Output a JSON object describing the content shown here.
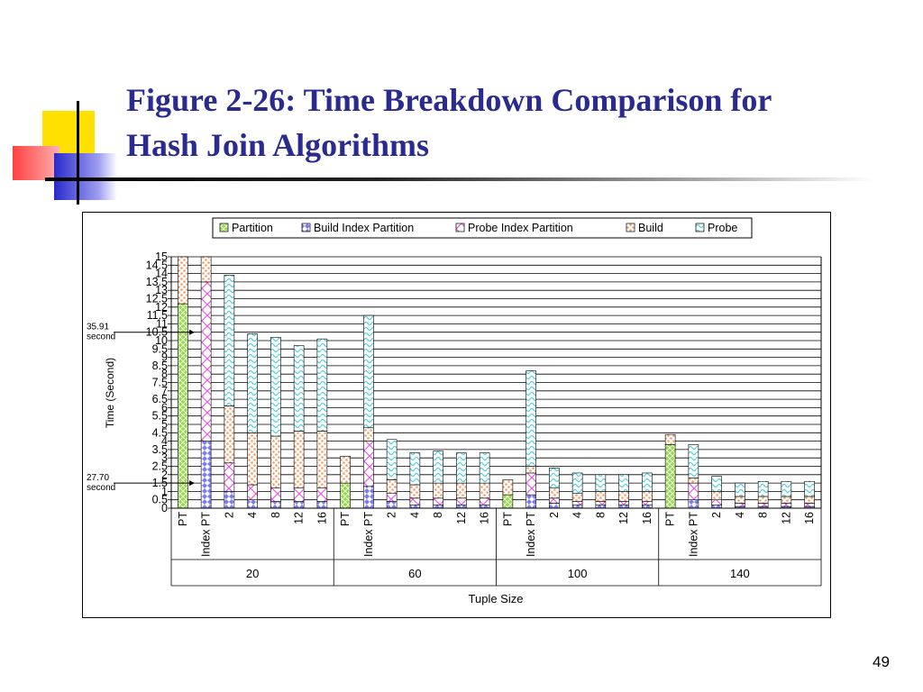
{
  "slide": {
    "title_line1": "Figure 2-26: Time Breakdown Comparison for",
    "title_line2": "Hash Join Algorithms",
    "page_number": "49"
  },
  "chart_data": {
    "type": "bar",
    "stacked": true,
    "ylabel": "Time (Second)",
    "xlabel": "Tuple Size",
    "ylim": [
      0,
      15
    ],
    "yticks": [
      "0",
      "0.5",
      "1",
      "1.5",
      "2",
      "2.5",
      "3",
      "3.5",
      "4",
      "4.5",
      "5",
      "5.5",
      "6",
      "6.5",
      "7",
      "7.5",
      "8",
      "8.5",
      "9",
      "9.5",
      "10",
      "10.5",
      "11",
      "11.5",
      "12",
      "12.5",
      "13",
      "13.5",
      "14",
      "14.5",
      "15"
    ],
    "grid": true,
    "legend_position": "top",
    "groups": [
      "20",
      "60",
      "100",
      "140"
    ],
    "categories": [
      "PT",
      "Index PT",
      "2",
      "4",
      "8",
      "12",
      "16"
    ],
    "series": [
      {
        "name": "Partition",
        "color": "#9bd65a",
        "values": [
          [
            12.2,
            0,
            0,
            0,
            0,
            0,
            0
          ],
          [
            1.5,
            0,
            0,
            0,
            0,
            0,
            0
          ],
          [
            0.8,
            0,
            0,
            0,
            0,
            0,
            0
          ],
          [
            3.8,
            0,
            0,
            0,
            0,
            0,
            0
          ]
        ]
      },
      {
        "name": "Build Index Partition",
        "color": "#7d7df0",
        "values": [
          [
            0,
            4.0,
            1.0,
            0.5,
            0.4,
            0.4,
            0.4
          ],
          [
            0,
            1.3,
            0.4,
            0.2,
            0.2,
            0.2,
            0.2
          ],
          [
            0,
            0.8,
            0.3,
            0.2,
            0.2,
            0.2,
            0.2
          ],
          [
            0,
            0.5,
            0.2,
            0.1,
            0.1,
            0.1,
            0.1
          ]
        ]
      },
      {
        "name": "Probe Index Partition",
        "color": "#f07ae0",
        "values": [
          [
            0,
            9.5,
            1.7,
            0.9,
            0.8,
            0.8,
            0.8
          ],
          [
            0,
            2.7,
            0.5,
            0.4,
            0.4,
            0.4,
            0.4
          ],
          [
            0,
            1.3,
            0.3,
            0.2,
            0.2,
            0.2,
            0.2
          ],
          [
            0,
            1.0,
            0.3,
            0.2,
            0.2,
            0.2,
            0.2
          ]
        ]
      },
      {
        "name": "Build",
        "color": "#f6b58a",
        "values": [
          [
            2.8,
            1.5,
            3.4,
            3.1,
            3.1,
            3.4,
            3.4
          ],
          [
            1.6,
            0.8,
            0.8,
            0.8,
            0.9,
            0.9,
            0.9
          ],
          [
            0.9,
            0.4,
            0.6,
            0.5,
            0.6,
            0.6,
            0.6
          ],
          [
            0.6,
            0.3,
            0.5,
            0.4,
            0.4,
            0.4,
            0.4
          ]
        ]
      },
      {
        "name": "Probe",
        "color": "#a8eef2",
        "values": [
          [
            0,
            0,
            7.8,
            5.9,
            5.9,
            5.1,
            5.5
          ],
          [
            0,
            6.7,
            2.4,
            1.9,
            1.9,
            1.8,
            1.8
          ],
          [
            0,
            5.7,
            1.2,
            1.2,
            1.0,
            1.0,
            1.1
          ],
          [
            0,
            2.0,
            0.9,
            0.8,
            0.9,
            0.9,
            0.9
          ]
        ]
      }
    ],
    "annotations": [
      {
        "line1": "35.91",
        "line2": "second",
        "y": 10.5
      },
      {
        "line1": "27.70",
        "line2": "second",
        "y": 1.5
      }
    ]
  }
}
